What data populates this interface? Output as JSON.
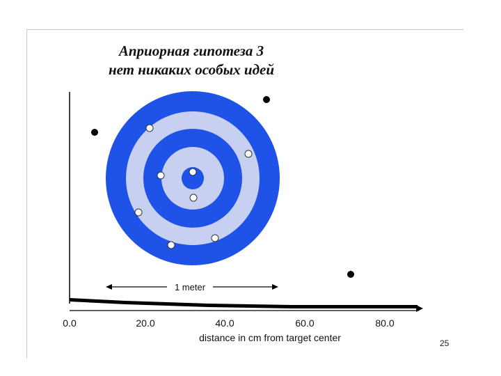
{
  "title": {
    "line1": "Априорная гипотеза 3",
    "line2": "нет никаких особых идей"
  },
  "scale_bar": {
    "label": "1 meter"
  },
  "axis": {
    "title": "distance in cm from target center",
    "ticks": [
      "0.0",
      "20.0",
      "40.0",
      "60.0",
      "80.0"
    ]
  },
  "target": {
    "ring_colors": [
      "#1f52e6",
      "#c8d0f2",
      "#1f52e6",
      "#c8d0f2",
      "#1f52e6"
    ]
  },
  "page_number": "25"
}
